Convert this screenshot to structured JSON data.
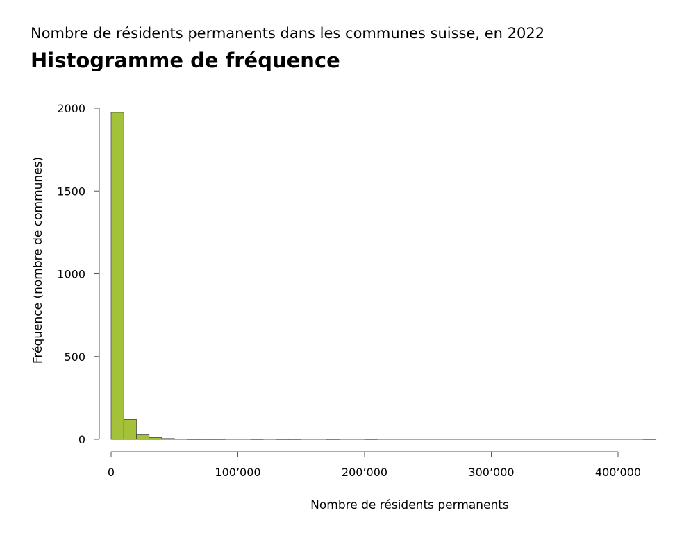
{
  "header": {
    "subtitle": "Nombre de résidents permanents dans les communes suisse, en 2022",
    "title": "Histogramme de fréquence"
  },
  "chart_data": {
    "type": "bar",
    "title": "Histogramme de fréquence",
    "subtitle": "Nombre de résidents permanents dans les communes suisse, en 2022",
    "xlabel": "Nombre de résidents permanents",
    "ylabel": "Fréquence (nombre de communes)",
    "bar_color": "#a4c13a",
    "bin_width": 10000,
    "bin_starts": [
      0,
      10000,
      20000,
      30000,
      40000,
      50000,
      60000,
      70000,
      80000,
      110000,
      130000,
      140000,
      170000,
      200000,
      420000
    ],
    "values": [
      1975,
      120,
      27,
      11,
      5,
      2,
      1,
      1,
      1,
      1,
      1,
      1,
      1,
      1,
      1
    ],
    "xlim": [
      0,
      430000
    ],
    "ylim": [
      0,
      2000
    ],
    "x_ticks": [
      0,
      100000,
      200000,
      300000,
      400000
    ],
    "x_tick_labels": [
      "0",
      "100’000",
      "200’000",
      "300’000",
      "400’000"
    ],
    "y_ticks": [
      0,
      500,
      1000,
      1500,
      2000
    ],
    "y_tick_labels": [
      "0",
      "500",
      "1000",
      "1500",
      "2000"
    ],
    "grid": false
  }
}
